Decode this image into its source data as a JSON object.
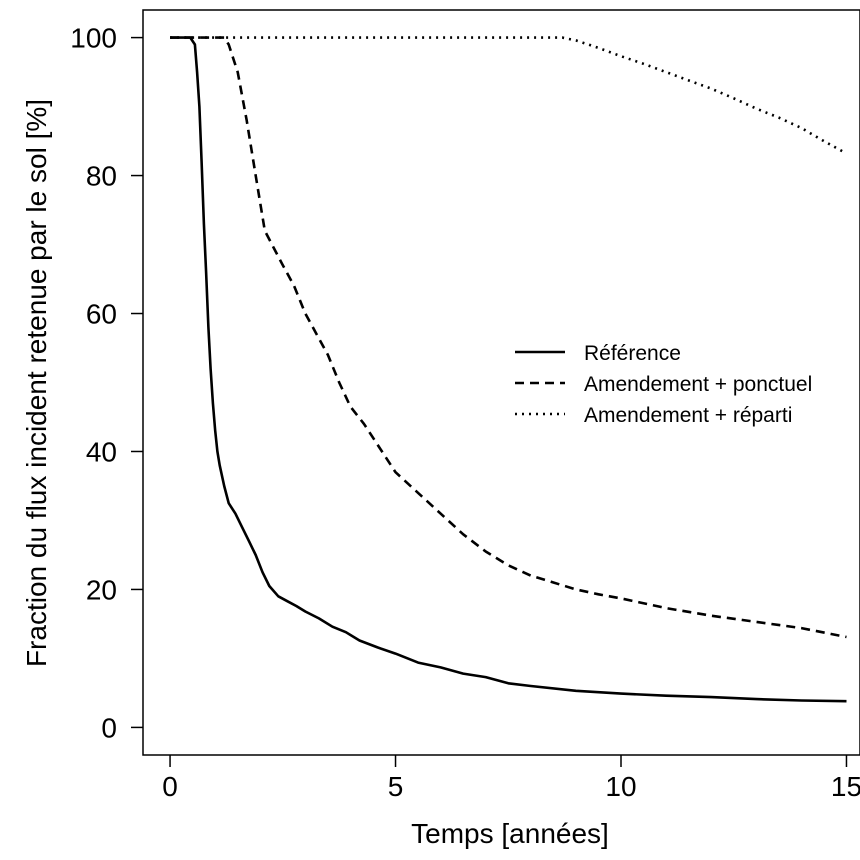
{
  "chart_data": {
    "type": "line",
    "title": "",
    "xlabel": "Temps [années]",
    "ylabel": "Fraction du flux incident retenue par le sol [%]",
    "xlim": [
      -0.6,
      15.3
    ],
    "ylim": [
      -4,
      104
    ],
    "xticks": [
      0,
      5,
      10,
      15
    ],
    "yticks": [
      0,
      20,
      40,
      60,
      80,
      100
    ],
    "grid": false,
    "legend_position": "right",
    "line_color": "#000000",
    "series": [
      {
        "name": "Référence",
        "style": "solid",
        "x": [
          0,
          0.45,
          0.55,
          0.6,
          0.65,
          0.7,
          0.75,
          0.8,
          0.85,
          0.9,
          0.95,
          1.0,
          1.05,
          1.1,
          1.2,
          1.3,
          1.45,
          1.6,
          1.75,
          1.9,
          2.05,
          2.2,
          2.4,
          2.6,
          2.8,
          3.0,
          3.3,
          3.6,
          3.9,
          4.2,
          4.6,
          5.0,
          5.5,
          6.0,
          6.5,
          7.0,
          7.5,
          8.0,
          9.0,
          10.0,
          11.0,
          12.0,
          13.0,
          14.0,
          15.0
        ],
        "y": [
          100,
          100,
          99,
          95,
          90,
          82,
          73,
          66,
          58,
          52,
          47,
          43,
          40,
          38,
          35,
          32.5,
          31,
          29,
          27,
          25,
          22.5,
          20.5,
          19,
          18.3,
          17.6,
          16.8,
          15.8,
          14.6,
          13.8,
          12.6,
          11.6,
          10.7,
          9.4,
          8.7,
          7.8,
          7.3,
          6.4,
          6.0,
          5.3,
          4.9,
          4.6,
          4.4,
          4.1,
          3.9,
          3.8
        ]
      },
      {
        "name": "Amendement + ponctuel",
        "style": "dashed",
        "x": [
          0,
          1.2,
          1.3,
          1.5,
          1.7,
          1.9,
          2.1,
          2.3,
          2.5,
          2.75,
          3.0,
          3.25,
          3.5,
          3.75,
          4.0,
          4.3,
          4.6,
          5.0,
          5.5,
          6.0,
          6.5,
          7.0,
          7.5,
          8.0,
          8.5,
          9.0,
          9.5,
          10.0,
          11.0,
          12.0,
          13.0,
          14.0,
          15.0
        ],
        "y": [
          100,
          100,
          99,
          95,
          88,
          80,
          72,
          69.5,
          67,
          64,
          60,
          57,
          54,
          50,
          46.5,
          44,
          41,
          37,
          34,
          31,
          28,
          25.5,
          23.5,
          22,
          21,
          20,
          19.3,
          18.7,
          17.3,
          16.2,
          15.3,
          14.4,
          13.1
        ]
      },
      {
        "name": "Amendement + réparti",
        "style": "dotted",
        "x": [
          0,
          8.7,
          9.0,
          9.5,
          10.0,
          10.5,
          11.0,
          11.5,
          12.0,
          12.5,
          13.0,
          13.5,
          14.0,
          14.5,
          15.0
        ],
        "y": [
          100,
          100,
          99.6,
          98.5,
          97.3,
          96.2,
          95,
          93.8,
          92.6,
          91.2,
          89.7,
          88.4,
          86.9,
          85,
          83.2
        ]
      }
    ]
  }
}
